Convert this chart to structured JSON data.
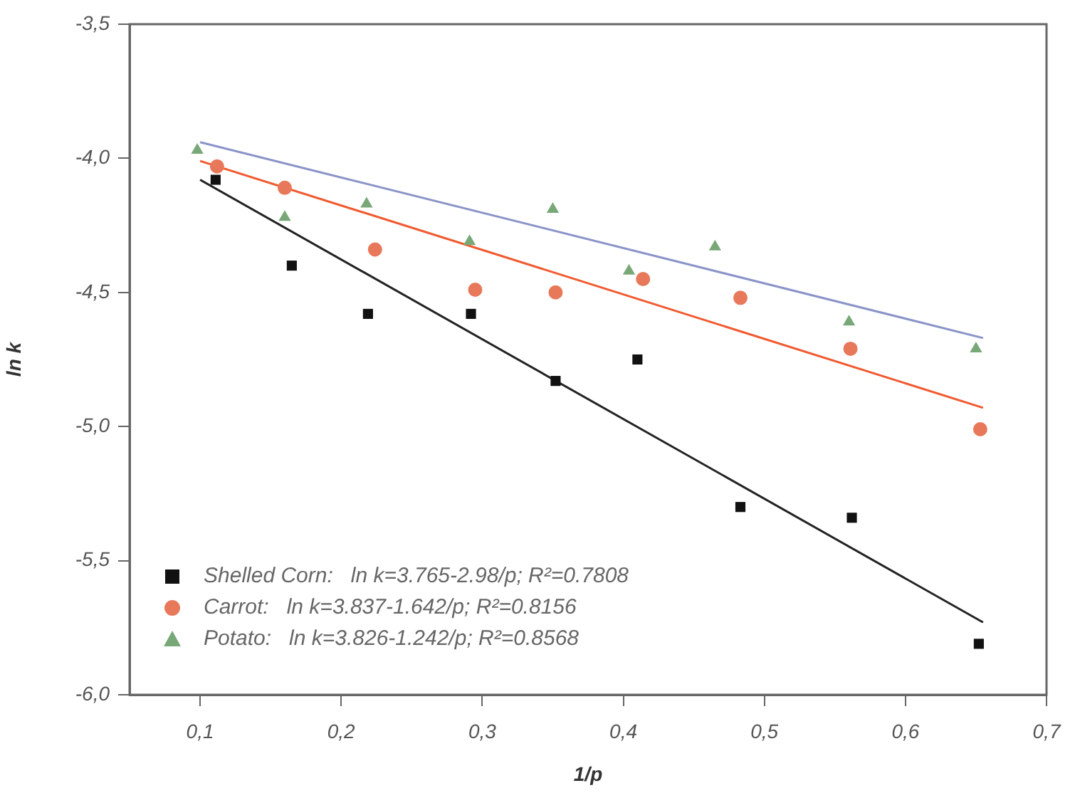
{
  "chart_data": {
    "type": "scatter",
    "xlabel": "1/p",
    "ylabel": "ln k",
    "xlim": [
      0.05,
      0.7
    ],
    "ylim": [
      -6.0,
      -3.5
    ],
    "xticks": [
      {
        "value": 0.1,
        "label": "0,1"
      },
      {
        "value": 0.2,
        "label": "0,2"
      },
      {
        "value": 0.3,
        "label": "0,3"
      },
      {
        "value": 0.4,
        "label": "0,4"
      },
      {
        "value": 0.5,
        "label": "0,5"
      },
      {
        "value": 0.6,
        "label": "0,6"
      },
      {
        "value": 0.7,
        "label": "0,7"
      }
    ],
    "yticks": [
      {
        "value": -6.0,
        "label": "-6,0"
      },
      {
        "value": -5.5,
        "label": "-5,5"
      },
      {
        "value": -5.0,
        "label": "-5,0"
      },
      {
        "value": -4.5,
        "label": "-4,5"
      },
      {
        "value": -4.0,
        "label": "-4,0"
      },
      {
        "value": -3.5,
        "label": "-3,5"
      }
    ],
    "grid": false,
    "legend": "bottom left",
    "series": [
      {
        "type": "scatter",
        "name": "Shelled Corn:   ln k=3.765-2.98/p; R²=0.7808",
        "color": "#111111",
        "marker": "square",
        "x": [
          0.111,
          0.165,
          0.219,
          0.292,
          0.352,
          0.41,
          0.483,
          0.562,
          0.652
        ],
        "values": [
          -4.08,
          -4.4,
          -4.58,
          -4.58,
          -4.83,
          -4.75,
          -5.3,
          -5.34,
          -5.81
        ]
      },
      {
        "type": "scatter",
        "name": "Carrot:   ln k=3.837-1.642/p; R²=0.8156",
        "color": "#e8785a",
        "marker": "circle",
        "x": [
          0.112,
          0.16,
          0.224,
          0.295,
          0.352,
          0.414,
          0.483,
          0.561,
          0.653
        ],
        "values": [
          -4.03,
          -4.11,
          -4.34,
          -4.49,
          -4.5,
          -4.45,
          -4.52,
          -4.71,
          -5.01
        ]
      },
      {
        "type": "scatter",
        "name": "Potato:   ln k=3.826-1.242/p; R²=0.8568",
        "color": "#78a878",
        "marker": "triangle",
        "x": [
          0.098,
          0.16,
          0.218,
          0.291,
          0.35,
          0.404,
          0.465,
          0.56,
          0.65
        ],
        "values": [
          -3.97,
          -4.22,
          -4.17,
          -4.31,
          -4.19,
          -4.42,
          -4.33,
          -4.61,
          -4.71
        ]
      },
      {
        "type": "line",
        "color": "#222222",
        "marker": "none",
        "x": [
          0.1,
          0.655
        ],
        "values": [
          -4.08,
          -5.73
        ]
      },
      {
        "type": "line",
        "color": "#f05a30",
        "marker": "none",
        "x": [
          0.1,
          0.655
        ],
        "values": [
          -4.01,
          -4.93
        ]
      },
      {
        "type": "line",
        "color": "#8a94c8",
        "marker": "none",
        "x": [
          0.1,
          0.655
        ],
        "values": [
          -3.94,
          -4.67
        ]
      }
    ]
  }
}
